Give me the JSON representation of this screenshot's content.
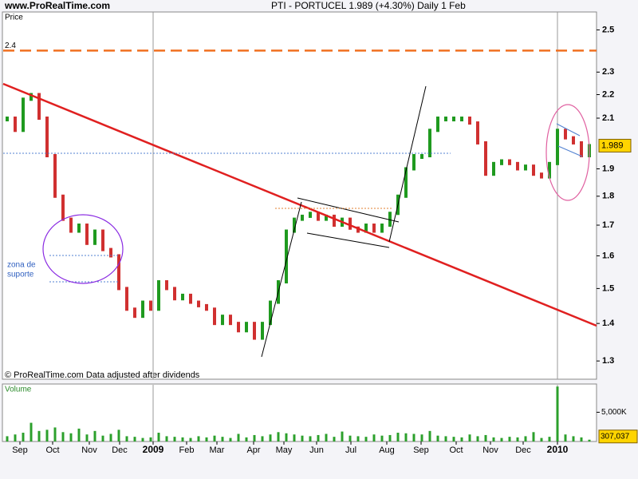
{
  "chart_data": {
    "type": "price-volume",
    "source": "www.ProRealTime.com",
    "title": "PTI - PORTUCEL    1.989 (+4.30%)    Daily  1 Feb",
    "price_label": "Price",
    "volume_label": "Volume",
    "footer": "© ProRealTime.com  Data adjusted after dividends",
    "annotation": [
      "zona de",
      "suporte"
    ],
    "hline": 2.4,
    "log": true,
    "series": [
      {
        "name": "PTI - PORTUCEL",
        "up_color": "#1f9a1f",
        "down_color": "#d03030",
        "values": [
          2.1,
          2.05,
          2.18,
          2.2,
          2.1,
          1.95,
          1.8,
          1.72,
          1.68,
          1.7,
          1.64,
          1.68,
          1.62,
          1.6,
          1.5,
          1.44,
          1.42,
          1.46,
          1.44,
          1.52,
          1.5,
          1.47,
          1.48,
          1.46,
          1.45,
          1.44,
          1.4,
          1.42,
          1.4,
          1.38,
          1.4,
          1.36,
          1.4,
          1.46,
          1.52,
          1.68,
          1.72,
          1.73,
          1.74,
          1.72,
          1.73,
          1.7,
          1.72,
          1.69,
          1.68,
          1.7,
          1.68,
          1.7,
          1.74,
          1.8,
          1.9,
          1.95,
          1.95,
          2.05,
          2.1,
          2.1,
          2.1,
          2.1,
          2.08,
          2.0,
          1.88,
          1.92,
          1.93,
          1.92,
          1.9,
          1.91,
          1.88,
          1.87,
          1.92,
          2.05,
          2.02,
          2.0,
          1.95,
          1.989
        ]
      },
      {
        "name": "Volume",
        "color": "#2ca02c",
        "axis": "y2",
        "values": [
          900000,
          1200000,
          1500000,
          3200000,
          1800000,
          2000000,
          2400000,
          1600000,
          1400000,
          2200000,
          1200000,
          1800000,
          1000000,
          1300000,
          2000000,
          900000,
          800000,
          600000,
          700000,
          1500000,
          900000,
          800000,
          700000,
          600000,
          900000,
          700000,
          1000000,
          800000,
          600000,
          1300000,
          700000,
          1100000,
          900000,
          1200000,
          1600000,
          1400000,
          1200000,
          1000000,
          900000,
          1100000,
          1300000,
          800000,
          1700000,
          1000000,
          900000,
          800000,
          1200000,
          1000000,
          1100000,
          1500000,
          1400000,
          1300000,
          1200000,
          1800000,
          1000000,
          900000,
          800000,
          700000,
          1200000,
          900000,
          1100000,
          700000,
          600000,
          800000,
          700000,
          900000,
          1600000,
          600000,
          800000,
          9400000,
          1200000,
          900000,
          700000,
          307037
        ],
        "value_labels": {
          "73": "307,037"
        }
      }
    ],
    "xlim": [
      -0.5,
      73.5
    ],
    "xticks": [
      {
        "value": 1.6,
        "label": "Sep"
      },
      {
        "value": 5.7,
        "label": "Oct"
      },
      {
        "value": 10.3,
        "label": "Nov"
      },
      {
        "value": 14.1,
        "label": "Dec"
      },
      18.3,
      {
        "value": 22.5,
        "label": "Feb"
      },
      {
        "value": 26.3,
        "label": "Mar"
      },
      {
        "value": 30.9,
        "label": "Apr"
      },
      {
        "value": 34.7,
        "label": "May"
      },
      {
        "value": 38.8,
        "label": "Jun"
      },
      {
        "value": 43.1,
        "label": "Jul"
      },
      {
        "value": 47.6,
        "label": "Aug"
      },
      {
        "value": 51.9,
        "label": "Sep"
      },
      {
        "value": 56.3,
        "label": "Oct"
      },
      {
        "value": 60.6,
        "label": "Nov"
      },
      {
        "value": 64.7,
        "label": "Dec"
      },
      69
    ],
    "year_labels": [
      "2009",
      "2010"
    ],
    "ylim": [
      1.254,
      2.59
    ],
    "yticks": [
      1.3,
      1.4,
      1.5,
      1.6,
      1.7,
      1.8,
      1.9,
      2.1,
      2.2,
      2.3,
      2.5
    ],
    "y2lim": [
      0,
      9700000
    ],
    "y2ticks": [
      {
        "value": 5000000,
        "label": "5,000K"
      }
    ]
  }
}
